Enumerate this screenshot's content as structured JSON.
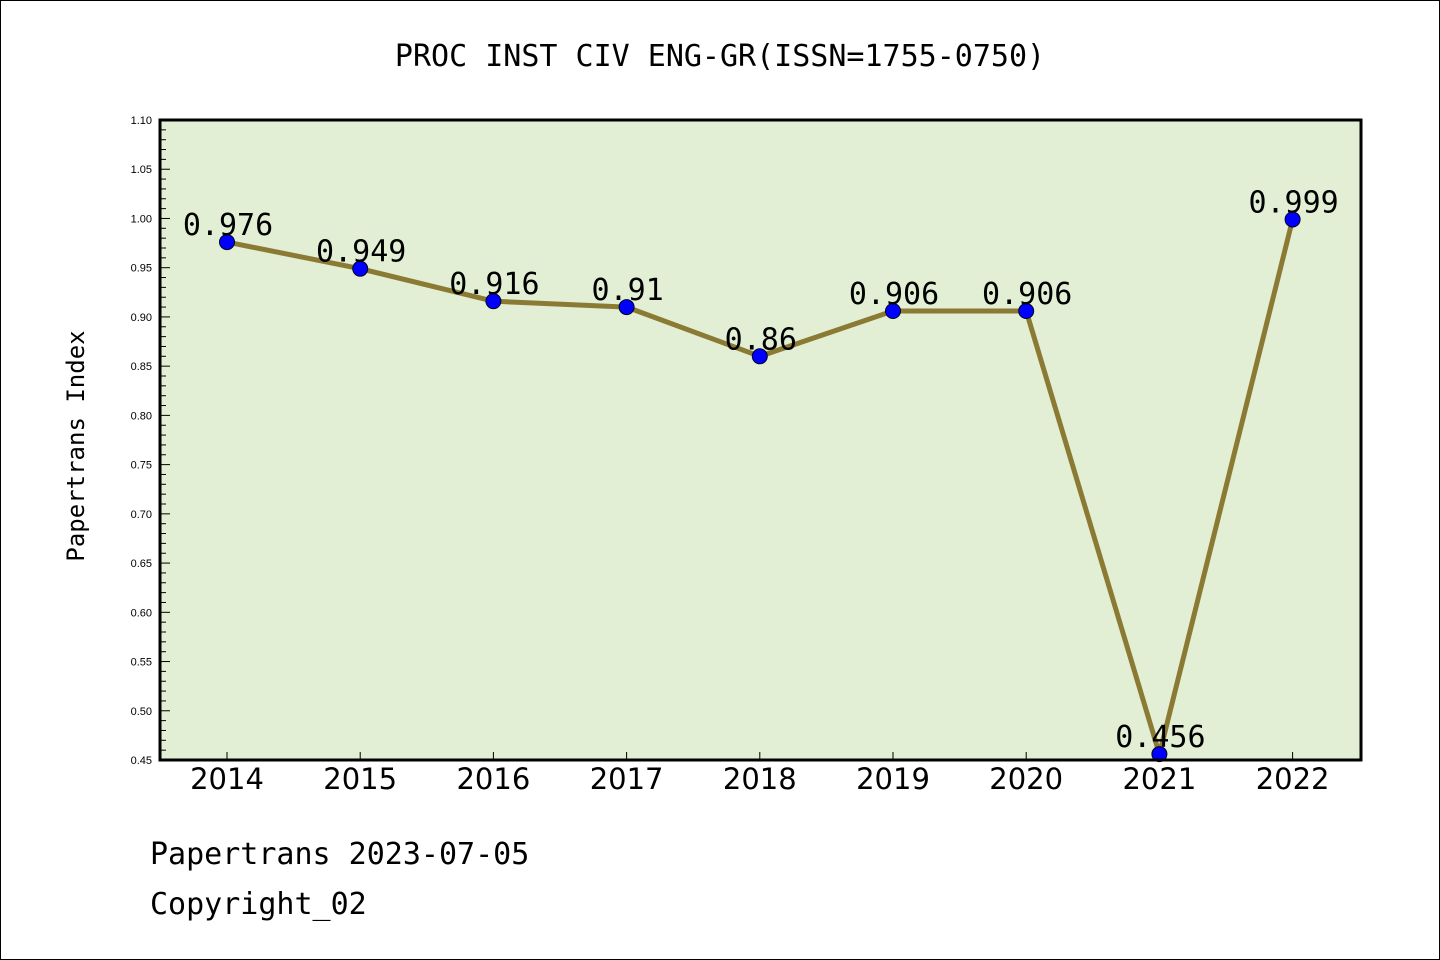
{
  "chart_data": {
    "type": "line",
    "title": "PROC INST CIV ENG-GR(ISSN=1755-0750)",
    "ylabel": "Papertrans Index",
    "xlabel": "",
    "categories": [
      "2014",
      "2015",
      "2016",
      "2017",
      "2018",
      "2019",
      "2020",
      "2021",
      "2022"
    ],
    "values": [
      0.976,
      0.949,
      0.916,
      0.91,
      0.86,
      0.906,
      0.906,
      0.456,
      0.999
    ],
    "data_labels": [
      "0.976",
      "0.949",
      "0.916",
      "0.91",
      "0.86",
      "0.906",
      "0.906",
      "0.456",
      "0.999"
    ],
    "ylim": [
      0.45,
      1.1
    ],
    "yticks": [
      "0.45",
      "0.50",
      "0.55",
      "0.60",
      "0.65",
      "0.70",
      "0.75",
      "0.80",
      "0.85",
      "0.90",
      "0.95",
      "1.00",
      "1.05",
      "1.10"
    ],
    "grid": false,
    "colors": {
      "plot_background": "#e2efd5",
      "line": "#8b7a33",
      "marker": "#0000ff"
    }
  },
  "footer": {
    "line1": "Papertrans 2023-07-05",
    "line2": "Copyright_02"
  }
}
